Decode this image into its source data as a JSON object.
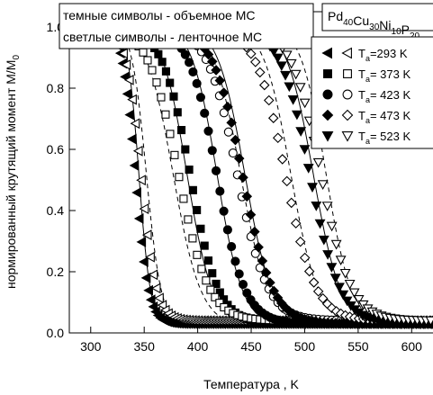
{
  "chart_data": {
    "type": "scatter",
    "xlabel": "Температура , K",
    "ylabel": "нормированный крутящий момент M/M",
    "ylabel_sub": "0",
    "xlim": [
      280,
      625
    ],
    "ylim": [
      0,
      1.05
    ],
    "xticks": [
      300,
      350,
      400,
      450,
      500,
      550,
      600
    ],
    "yticks": [
      0.0,
      0.2,
      0.4,
      0.6,
      0.8,
      1.0
    ],
    "grid": false,
    "legend_position": "top-right",
    "notes": {
      "line1": "темные символы - объемное МС",
      "line2": "светлые символы - ленточное МС"
    },
    "composition": {
      "parts": [
        {
          "text": "Pd",
          "sub": "40"
        },
        {
          "text": "Cu",
          "sub": "30"
        },
        {
          "text": "Ni",
          "sub": "10"
        },
        {
          "text": "P",
          "sub": "20"
        }
      ]
    },
    "series": [
      {
        "label_main": "T",
        "label_sub": "a",
        "label_rest": "=293 K",
        "filled_marker": "triangle-left",
        "open_marker": "triangle-left",
        "T_half": 342,
        "width": 6,
        "open_T_half": 347,
        "open_width": 7,
        "fit_T_half": 345,
        "fit_width": 5.5,
        "fit2_T_half": 352,
        "fit2_width": 7
      },
      {
        "label_main": "T",
        "label_sub": "a",
        "label_rest": "= 373 K",
        "filled_marker": "square",
        "open_marker": "square",
        "T_half": 393,
        "width": 13,
        "open_T_half": 382,
        "open_width": 14,
        "fit_T_half": 390,
        "fit_width": 12,
        "fit2_T_half": 377,
        "fit2_width": 13
      },
      {
        "label_main": "T",
        "label_sub": "a",
        "label_rest": "= 423 K",
        "filled_marker": "circle",
        "open_marker": "circle",
        "T_half": 418,
        "width": 13,
        "open_T_half": 437,
        "open_width": 14,
        "fit_T_half": 418,
        "fit_width": 12,
        "fit2_T_half": 440,
        "fit2_width": 13
      },
      {
        "label_main": "T",
        "label_sub": "a",
        "label_rest": "= 473 K",
        "filled_marker": "diamond",
        "open_marker": "diamond",
        "T_half": 442,
        "width": 14,
        "open_T_half": 482,
        "open_width": 14,
        "fit_T_half": 444,
        "fit_width": 13,
        "fit2_T_half": 487,
        "fit2_width": 13
      },
      {
        "label_main": "T",
        "label_sub": "a",
        "label_rest": "= 523 K",
        "filled_marker": "triangle-down",
        "open_marker": "triangle-down",
        "T_half": 505,
        "width": 14,
        "open_T_half": 515,
        "open_width": 14,
        "fit_T_half": 508,
        "fit_width": 13,
        "fit2_T_half": 520,
        "fit2_width": 12
      }
    ]
  }
}
